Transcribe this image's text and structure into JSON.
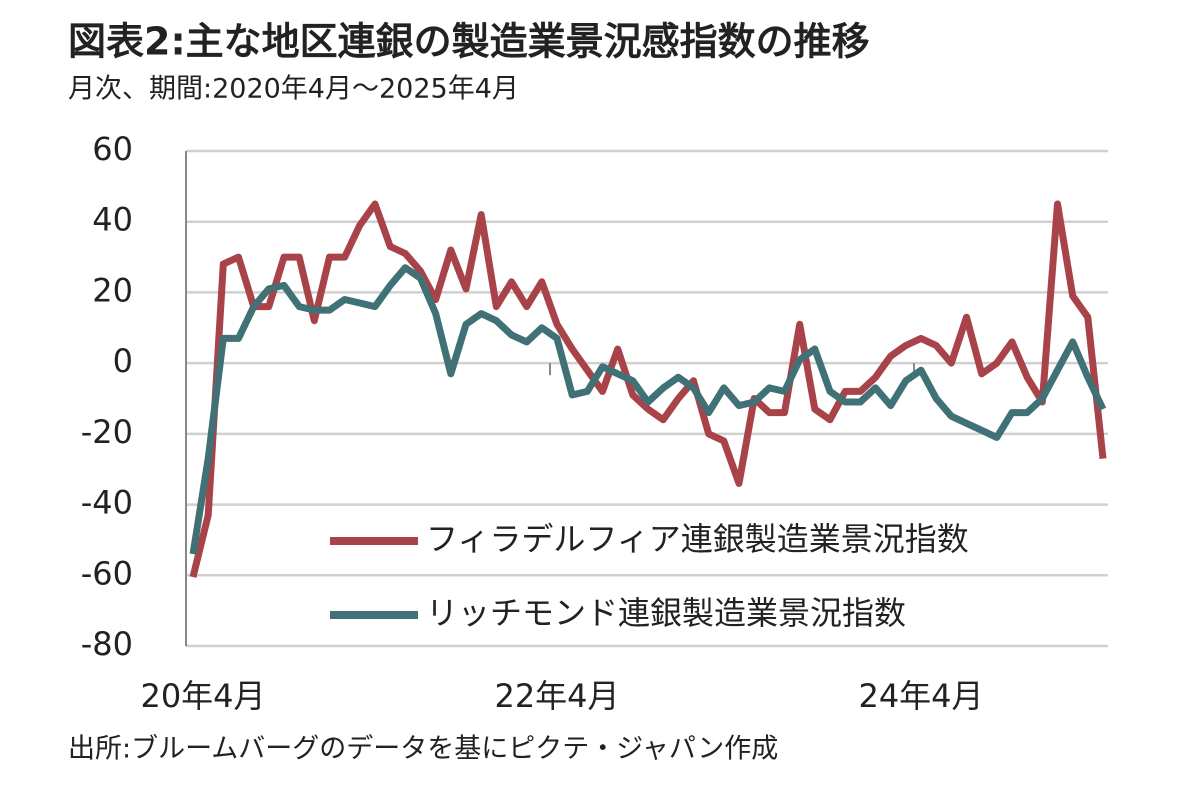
{
  "chart_data": {
    "type": "line",
    "title": "図表2:主な地区連銀の製造業景況感指数の推移",
    "subtitle": "月次、期間:2020年4月～2025年4月",
    "source": "出所:ブルームバーグのデータを基にピクテ・ジャパン作成",
    "categories": [
      "20年4月",
      null,
      null,
      null,
      null,
      null,
      null,
      null,
      null,
      null,
      null,
      null,
      null,
      null,
      null,
      null,
      null,
      null,
      null,
      null,
      null,
      null,
      null,
      null,
      "22年4月",
      null,
      null,
      null,
      null,
      null,
      null,
      null,
      null,
      null,
      null,
      null,
      null,
      null,
      null,
      null,
      null,
      null,
      null,
      null,
      null,
      null,
      null,
      null,
      "24年4月",
      null,
      null,
      null,
      null,
      null,
      null,
      null,
      null,
      null,
      null,
      null,
      null
    ],
    "series": [
      {
        "name": "フィラデルフィア連銀製造業景況指数",
        "color": "#a8434a",
        "values": [
          -60.5,
          -43,
          28,
          30,
          16,
          16,
          30,
          30,
          12,
          30,
          30,
          39,
          45,
          33,
          31,
          26,
          18,
          32,
          21,
          42,
          16,
          23,
          16,
          23,
          11,
          4,
          -2,
          -8,
          4,
          -9,
          -13,
          -16,
          -10,
          -5,
          -20,
          -22,
          -34,
          -10,
          -14,
          -14,
          11,
          -13,
          -16,
          -8,
          -8,
          -4,
          2,
          5,
          7,
          5,
          0,
          13,
          -3,
          0,
          6,
          -4,
          -11,
          45,
          19,
          13,
          -27
        ]
      },
      {
        "name": "リッチモンド連銀製造業景況指数",
        "color": "#3f7176",
        "values": [
          -54,
          -27,
          7,
          7,
          16,
          21,
          22,
          16,
          15,
          15,
          18,
          17,
          16,
          22,
          27,
          24,
          14,
          -3,
          11,
          14,
          12,
          8,
          6,
          10,
          7,
          -9,
          -8,
          -1,
          -3,
          -5,
          -11,
          -7,
          -4,
          -7,
          -14,
          -7,
          -12,
          -11,
          -7,
          -8,
          1,
          4,
          -8,
          -11,
          -11,
          -7,
          -12,
          -5,
          -2,
          -10,
          -15,
          -17,
          -19,
          -21,
          -14,
          -14,
          -10,
          -2,
          6,
          -4,
          -13
        ]
      }
    ],
    "ylim": [
      -80,
      60
    ],
    "yticks": [
      -80,
      -60,
      -40,
      -20,
      0,
      20,
      40,
      60
    ],
    "grid": true
  }
}
